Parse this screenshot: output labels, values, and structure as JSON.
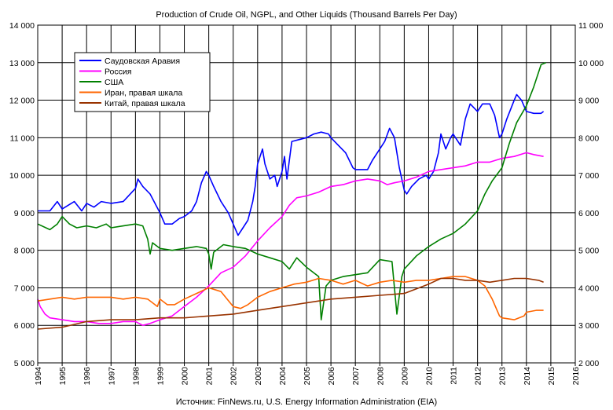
{
  "chart_data": {
    "type": "line",
    "title": "Production of Crude Oil, NGPL, and Other Liquids (Thousand Barrels Per Day)",
    "source": "Источник: FinNews.ru, U.S. Energy Information Administration (EIA)",
    "grid": true,
    "legend_position": "top-left",
    "x_ticks": [
      "1994",
      "1995",
      "1996",
      "1997",
      "1998",
      "1999",
      "2000",
      "2001",
      "2002",
      "2003",
      "2004",
      "2005",
      "2006",
      "2007",
      "2008",
      "2009",
      "2010",
      "2011",
      "2012",
      "2013",
      "2014",
      "2015",
      "2016"
    ],
    "xlim": [
      1994,
      2016
    ],
    "y_left": {
      "ylim": [
        5000,
        14000
      ],
      "ticks": [
        "5 000",
        "6 000",
        "7 000",
        "8 000",
        "9 000",
        "10 000",
        "11 000",
        "12 000",
        "13 000",
        "14 000"
      ]
    },
    "y_right": {
      "ylim": [
        2000,
        11000
      ],
      "ticks": [
        "2 000",
        "3 000",
        "4 000",
        "5 000",
        "6 000",
        "7 000",
        "8 000",
        "9 000",
        "10 000",
        "11 000"
      ]
    },
    "series": [
      {
        "name": "Саудовская Аравия",
        "color": "#0000ff",
        "axis": "left",
        "points": [
          [
            1994.0,
            9050
          ],
          [
            1994.5,
            9050
          ],
          [
            1994.8,
            9300
          ],
          [
            1995.0,
            9100
          ],
          [
            1995.5,
            9300
          ],
          [
            1995.8,
            9050
          ],
          [
            1996.0,
            9250
          ],
          [
            1996.3,
            9150
          ],
          [
            1996.6,
            9300
          ],
          [
            1997.0,
            9250
          ],
          [
            1997.5,
            9300
          ],
          [
            1998.0,
            9650
          ],
          [
            1998.1,
            9900
          ],
          [
            1998.3,
            9700
          ],
          [
            1998.6,
            9500
          ],
          [
            1999.0,
            9000
          ],
          [
            1999.2,
            8700
          ],
          [
            1999.5,
            8700
          ],
          [
            1999.8,
            8850
          ],
          [
            2000.0,
            8900
          ],
          [
            2000.3,
            9050
          ],
          [
            2000.5,
            9300
          ],
          [
            2000.7,
            9800
          ],
          [
            2000.9,
            10100
          ],
          [
            2001.0,
            10000
          ],
          [
            2001.2,
            9700
          ],
          [
            2001.5,
            9300
          ],
          [
            2001.8,
            9000
          ],
          [
            2002.0,
            8700
          ],
          [
            2002.2,
            8400
          ],
          [
            2002.4,
            8600
          ],
          [
            2002.6,
            8800
          ],
          [
            2002.8,
            9300
          ],
          [
            2002.9,
            9700
          ],
          [
            2003.0,
            10300
          ],
          [
            2003.2,
            10700
          ],
          [
            2003.3,
            10300
          ],
          [
            2003.5,
            9900
          ],
          [
            2003.7,
            10000
          ],
          [
            2003.8,
            9700
          ],
          [
            2004.0,
            10100
          ],
          [
            2004.1,
            10500
          ],
          [
            2004.2,
            9900
          ],
          [
            2004.4,
            10900
          ],
          [
            2004.7,
            10950
          ],
          [
            2005.0,
            11000
          ],
          [
            2005.3,
            11100
          ],
          [
            2005.6,
            11150
          ],
          [
            2005.9,
            11100
          ],
          [
            2006.0,
            11000
          ],
          [
            2006.3,
            10800
          ],
          [
            2006.6,
            10600
          ],
          [
            2006.9,
            10200
          ],
          [
            2007.0,
            10150
          ],
          [
            2007.5,
            10150
          ],
          [
            2007.7,
            10400
          ],
          [
            2008.0,
            10700
          ],
          [
            2008.2,
            10900
          ],
          [
            2008.4,
            11250
          ],
          [
            2008.6,
            11000
          ],
          [
            2008.8,
            10200
          ],
          [
            2009.0,
            9600
          ],
          [
            2009.1,
            9500
          ],
          [
            2009.3,
            9700
          ],
          [
            2009.6,
            9900
          ],
          [
            2009.9,
            10000
          ],
          [
            2010.0,
            9900
          ],
          [
            2010.2,
            10100
          ],
          [
            2010.4,
            10600
          ],
          [
            2010.5,
            11100
          ],
          [
            2010.7,
            10700
          ],
          [
            2010.9,
            11000
          ],
          [
            2011.0,
            11100
          ],
          [
            2011.3,
            10800
          ],
          [
            2011.5,
            11500
          ],
          [
            2011.7,
            11900
          ],
          [
            2012.0,
            11700
          ],
          [
            2012.2,
            11900
          ],
          [
            2012.5,
            11900
          ],
          [
            2012.7,
            11600
          ],
          [
            2012.9,
            11000
          ],
          [
            2013.0,
            11100
          ],
          [
            2013.2,
            11500
          ],
          [
            2013.5,
            12000
          ],
          [
            2013.6,
            12150
          ],
          [
            2013.8,
            12000
          ],
          [
            2014.0,
            11700
          ],
          [
            2014.3,
            11650
          ],
          [
            2014.6,
            11650
          ],
          [
            2014.7,
            11700
          ]
        ]
      },
      {
        "name": "Россия",
        "color": "#ff00ff",
        "axis": "left",
        "points": [
          [
            1994.0,
            6700
          ],
          [
            1994.1,
            6500
          ],
          [
            1994.3,
            6300
          ],
          [
            1994.5,
            6200
          ],
          [
            1995.0,
            6150
          ],
          [
            1995.5,
            6100
          ],
          [
            1996.0,
            6100
          ],
          [
            1996.5,
            6050
          ],
          [
            1997.0,
            6050
          ],
          [
            1997.5,
            6100
          ],
          [
            1998.0,
            6100
          ],
          [
            1998.3,
            6000
          ],
          [
            1998.6,
            6050
          ],
          [
            1999.0,
            6150
          ],
          [
            1999.5,
            6250
          ],
          [
            2000.0,
            6500
          ],
          [
            2000.5,
            6750
          ],
          [
            2001.0,
            7050
          ],
          [
            2001.5,
            7400
          ],
          [
            2002.0,
            7550
          ],
          [
            2002.5,
            7850
          ],
          [
            2003.0,
            8250
          ],
          [
            2003.5,
            8600
          ],
          [
            2004.0,
            8900
          ],
          [
            2004.3,
            9200
          ],
          [
            2004.6,
            9400
          ],
          [
            2005.0,
            9450
          ],
          [
            2005.5,
            9550
          ],
          [
            2006.0,
            9700
          ],
          [
            2006.5,
            9750
          ],
          [
            2007.0,
            9850
          ],
          [
            2007.5,
            9900
          ],
          [
            2008.0,
            9850
          ],
          [
            2008.3,
            9750
          ],
          [
            2008.6,
            9800
          ],
          [
            2009.0,
            9850
          ],
          [
            2009.5,
            9950
          ],
          [
            2010.0,
            10100
          ],
          [
            2010.5,
            10150
          ],
          [
            2011.0,
            10200
          ],
          [
            2011.5,
            10250
          ],
          [
            2012.0,
            10350
          ],
          [
            2012.5,
            10350
          ],
          [
            2013.0,
            10450
          ],
          [
            2013.5,
            10500
          ],
          [
            2014.0,
            10600
          ],
          [
            2014.3,
            10550
          ],
          [
            2014.7,
            10500
          ]
        ]
      },
      {
        "name": "США",
        "color": "#008000",
        "axis": "left",
        "points": [
          [
            1994.0,
            8700
          ],
          [
            1994.5,
            8550
          ],
          [
            1994.8,
            8700
          ],
          [
            1995.0,
            8900
          ],
          [
            1995.3,
            8700
          ],
          [
            1995.6,
            8600
          ],
          [
            1996.0,
            8650
          ],
          [
            1996.4,
            8600
          ],
          [
            1996.8,
            8700
          ],
          [
            1997.0,
            8600
          ],
          [
            1997.5,
            8650
          ],
          [
            1998.0,
            8700
          ],
          [
            1998.3,
            8650
          ],
          [
            1998.5,
            8300
          ],
          [
            1998.6,
            7900
          ],
          [
            1998.7,
            8200
          ],
          [
            1999.0,
            8050
          ],
          [
            1999.5,
            8000
          ],
          [
            2000.0,
            8050
          ],
          [
            2000.5,
            8100
          ],
          [
            2000.9,
            8050
          ],
          [
            2001.0,
            7900
          ],
          [
            2001.1,
            7500
          ],
          [
            2001.2,
            7950
          ],
          [
            2001.6,
            8150
          ],
          [
            2002.0,
            8100
          ],
          [
            2002.5,
            8050
          ],
          [
            2003.0,
            7900
          ],
          [
            2003.5,
            7800
          ],
          [
            2004.0,
            7700
          ],
          [
            2004.3,
            7500
          ],
          [
            2004.6,
            7800
          ],
          [
            2005.0,
            7550
          ],
          [
            2005.5,
            7300
          ],
          [
            2005.6,
            6150
          ],
          [
            2005.8,
            7050
          ],
          [
            2006.0,
            7200
          ],
          [
            2006.5,
            7300
          ],
          [
            2007.0,
            7350
          ],
          [
            2007.5,
            7400
          ],
          [
            2008.0,
            7750
          ],
          [
            2008.5,
            7700
          ],
          [
            2008.7,
            6300
          ],
          [
            2008.9,
            7300
          ],
          [
            2009.0,
            7500
          ],
          [
            2009.5,
            7850
          ],
          [
            2010.0,
            8100
          ],
          [
            2010.5,
            8300
          ],
          [
            2011.0,
            8450
          ],
          [
            2011.5,
            8700
          ],
          [
            2012.0,
            9050
          ],
          [
            2012.3,
            9500
          ],
          [
            2012.6,
            9850
          ],
          [
            2013.0,
            10200
          ],
          [
            2013.3,
            10850
          ],
          [
            2013.6,
            11400
          ],
          [
            2014.0,
            11850
          ],
          [
            2014.3,
            12350
          ],
          [
            2014.6,
            12950
          ],
          [
            2014.8,
            13000
          ]
        ]
      },
      {
        "name": "Иран, правая шкала",
        "color": "#ff6600",
        "axis": "right",
        "points": [
          [
            1994.0,
            3650
          ],
          [
            1994.5,
            3700
          ],
          [
            1995.0,
            3750
          ],
          [
            1995.5,
            3700
          ],
          [
            1996.0,
            3750
          ],
          [
            1996.5,
            3750
          ],
          [
            1997.0,
            3750
          ],
          [
            1997.5,
            3700
          ],
          [
            1998.0,
            3750
          ],
          [
            1998.5,
            3700
          ],
          [
            1998.9,
            3500
          ],
          [
            1999.0,
            3700
          ],
          [
            1999.3,
            3550
          ],
          [
            1999.6,
            3550
          ],
          [
            2000.0,
            3700
          ],
          [
            2000.5,
            3850
          ],
          [
            2001.0,
            4000
          ],
          [
            2001.5,
            3900
          ],
          [
            2002.0,
            3500
          ],
          [
            2002.3,
            3450
          ],
          [
            2002.6,
            3550
          ],
          [
            2003.0,
            3750
          ],
          [
            2003.5,
            3900
          ],
          [
            2004.0,
            4000
          ],
          [
            2004.5,
            4100
          ],
          [
            2005.0,
            4150
          ],
          [
            2005.5,
            4250
          ],
          [
            2006.0,
            4200
          ],
          [
            2006.5,
            4100
          ],
          [
            2007.0,
            4200
          ],
          [
            2007.5,
            4050
          ],
          [
            2008.0,
            4150
          ],
          [
            2008.5,
            4200
          ],
          [
            2009.0,
            4150
          ],
          [
            2009.5,
            4200
          ],
          [
            2010.0,
            4200
          ],
          [
            2010.5,
            4250
          ],
          [
            2011.0,
            4300
          ],
          [
            2011.5,
            4300
          ],
          [
            2012.0,
            4200
          ],
          [
            2012.3,
            4050
          ],
          [
            2012.6,
            3700
          ],
          [
            2012.9,
            3250
          ],
          [
            2013.0,
            3200
          ],
          [
            2013.5,
            3150
          ],
          [
            2013.9,
            3250
          ],
          [
            2014.0,
            3350
          ],
          [
            2014.4,
            3400
          ],
          [
            2014.7,
            3400
          ]
        ]
      },
      {
        "name": "Китай, правая шкала",
        "color": "#993300",
        "axis": "right",
        "points": [
          [
            1994.0,
            2900
          ],
          [
            1995.0,
            2950
          ],
          [
            1996.0,
            3100
          ],
          [
            1997.0,
            3150
          ],
          [
            1998.0,
            3150
          ],
          [
            1999.0,
            3200
          ],
          [
            2000.0,
            3200
          ],
          [
            2001.0,
            3250
          ],
          [
            2002.0,
            3300
          ],
          [
            2003.0,
            3400
          ],
          [
            2004.0,
            3500
          ],
          [
            2005.0,
            3600
          ],
          [
            2006.0,
            3700
          ],
          [
            2007.0,
            3750
          ],
          [
            2008.0,
            3800
          ],
          [
            2009.0,
            3850
          ],
          [
            2010.0,
            4100
          ],
          [
            2010.5,
            4250
          ],
          [
            2011.0,
            4250
          ],
          [
            2011.5,
            4200
          ],
          [
            2012.0,
            4200
          ],
          [
            2012.5,
            4150
          ],
          [
            2013.0,
            4200
          ],
          [
            2013.5,
            4250
          ],
          [
            2014.0,
            4250
          ],
          [
            2014.5,
            4200
          ],
          [
            2014.7,
            4150
          ]
        ]
      }
    ]
  }
}
